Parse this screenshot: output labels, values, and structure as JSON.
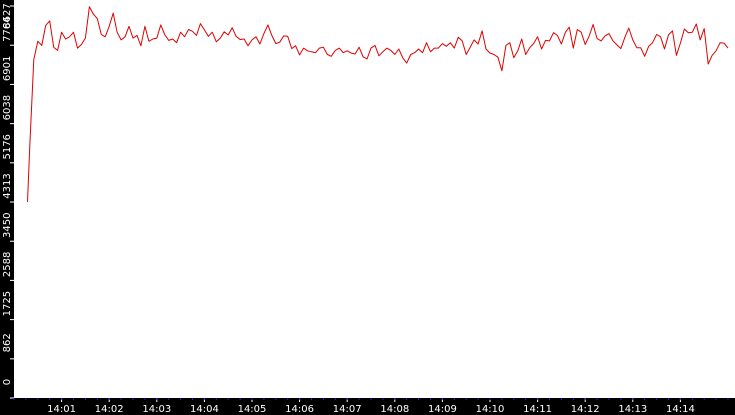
{
  "chart_data": {
    "type": "line",
    "title": "",
    "xlabel": "",
    "ylabel": "",
    "ylim": [
      0,
      8627
    ],
    "y_ticks": [
      0,
      862,
      1725,
      2588,
      3450,
      4313,
      5176,
      6038,
      6901,
      7764,
      8627
    ],
    "x_ticks": [
      "14:01",
      "14:02",
      "14:03",
      "14:04",
      "14:05",
      "14:06",
      "14:07",
      "14:08",
      "14:09",
      "14:10",
      "14:11",
      "14:12",
      "14:13",
      "14:14"
    ],
    "x_range": [
      "14:00:17",
      "14:15:00"
    ],
    "grid": false,
    "legend": "none",
    "colors": {
      "line": "#e00000",
      "axis_background": "#000000",
      "axis_text": "#ffffff",
      "minor_ticks": "#1a1aff"
    },
    "series": [
      {
        "x": [
          "14:00:17",
          "14:00:20",
          "14:00:25",
          "14:00:30",
          "14:00:35",
          "14:00:40",
          "14:00:45",
          "14:00:50",
          "14:00:55",
          "14:01:00",
          "14:01:05",
          "14:01:10",
          "14:01:15",
          "14:01:20",
          "14:01:25",
          "14:01:30",
          "14:01:35",
          "14:01:40",
          "14:01:45",
          "14:01:50",
          "14:01:55",
          "14:02:00",
          "14:02:05",
          "14:02:10",
          "14:02:15",
          "14:02:20",
          "14:02:25",
          "14:02:30",
          "14:02:35",
          "14:02:40",
          "14:02:45",
          "14:02:50",
          "14:02:55",
          "14:03:00",
          "14:03:05",
          "14:03:10",
          "14:03:15",
          "14:03:20",
          "14:03:25",
          "14:03:30",
          "14:03:35",
          "14:03:40",
          "14:03:45",
          "14:03:50",
          "14:03:55",
          "14:04:00",
          "14:04:05",
          "14:04:10",
          "14:04:15",
          "14:04:20",
          "14:04:25",
          "14:04:30",
          "14:04:35",
          "14:04:40",
          "14:04:45",
          "14:04:50",
          "14:04:55",
          "14:05:00",
          "14:05:05",
          "14:05:10",
          "14:05:15",
          "14:05:20",
          "14:05:25",
          "14:05:30",
          "14:05:35",
          "14:05:40",
          "14:05:45",
          "14:05:50",
          "14:05:55",
          "14:06:00",
          "14:06:05",
          "14:06:10",
          "14:06:15",
          "14:06:20",
          "14:06:25",
          "14:06:30",
          "14:06:35",
          "14:06:40",
          "14:06:45",
          "14:06:50",
          "14:06:55",
          "14:07:00",
          "14:07:05",
          "14:07:10",
          "14:07:15",
          "14:07:20",
          "14:07:25",
          "14:07:30",
          "14:07:35",
          "14:07:40",
          "14:07:45",
          "14:07:50",
          "14:07:55",
          "14:08:00",
          "14:08:05",
          "14:08:10",
          "14:08:15",
          "14:08:20",
          "14:08:25",
          "14:08:30",
          "14:08:35",
          "14:08:40",
          "14:08:45",
          "14:08:50",
          "14:08:55",
          "14:09:00",
          "14:09:05",
          "14:09:10",
          "14:09:15",
          "14:09:20",
          "14:09:25",
          "14:09:30",
          "14:09:35",
          "14:09:40",
          "14:09:45",
          "14:09:50",
          "14:09:55",
          "14:10:00",
          "14:10:05",
          "14:10:10",
          "14:10:15",
          "14:10:20",
          "14:10:25",
          "14:10:30",
          "14:10:35",
          "14:10:40",
          "14:10:45",
          "14:10:50",
          "14:10:55",
          "14:11:00",
          "14:11:05",
          "14:11:10",
          "14:11:15",
          "14:11:20",
          "14:11:25",
          "14:11:30",
          "14:11:35",
          "14:11:40",
          "14:11:45",
          "14:11:50",
          "14:11:55",
          "14:12:00",
          "14:12:05",
          "14:12:10",
          "14:12:15",
          "14:12:20",
          "14:12:25",
          "14:12:30",
          "14:12:35",
          "14:12:40",
          "14:12:45",
          "14:12:50",
          "14:12:55",
          "14:13:00",
          "14:13:05",
          "14:13:10",
          "14:13:15",
          "14:13:20",
          "14:13:25",
          "14:13:30",
          "14:13:35",
          "14:13:40",
          "14:13:45",
          "14:13:50",
          "14:13:55",
          "14:14:00",
          "14:14:05",
          "14:14:10",
          "14:14:15",
          "14:14:20",
          "14:14:25",
          "14:14:30",
          "14:14:35",
          "14:14:40",
          "14:14:45",
          "14:14:50",
          "14:14:55",
          "14:15:00"
        ],
        "values": [
          4313,
          5600,
          7450,
          7850,
          7760,
          8200,
          8300,
          7720,
          7650,
          8050,
          7900,
          7950,
          8050,
          7700,
          7780,
          7920,
          8610,
          8450,
          8350,
          8000,
          7950,
          8180,
          8470,
          8050,
          7880,
          7950,
          8180,
          7920,
          7980,
          7750,
          8180,
          7850,
          7900,
          7920,
          8210,
          8000,
          7870,
          7900,
          7820,
          8050,
          7950,
          8110,
          8070,
          7980,
          8240,
          8100,
          7960,
          8050,
          7840,
          7920,
          8060,
          7990,
          8150,
          7960,
          7890,
          7900,
          7750,
          7880,
          7950,
          7790,
          8020,
          8210,
          7980,
          7800,
          7830,
          7970,
          7960,
          7690,
          7750,
          7550,
          7700,
          7640,
          7620,
          7600,
          7700,
          7720,
          7560,
          7520,
          7650,
          7700,
          7600,
          7640,
          7590,
          7570,
          7720,
          7510,
          7460,
          7700,
          7760,
          7530,
          7620,
          7700,
          7650,
          7560,
          7680,
          7490,
          7370,
          7560,
          7600,
          7680,
          7600,
          7820,
          7620,
          7700,
          7700,
          7800,
          7740,
          7820,
          7700,
          7940,
          7860,
          7560,
          7720,
          7880,
          7790,
          8080,
          7680,
          7590,
          7560,
          7500,
          7200,
          7760,
          7820,
          7490,
          7640,
          7900,
          7560,
          7710,
          7800,
          7950,
          7680,
          7870,
          7860,
          8040,
          7980,
          7790,
          8050,
          8160,
          7700,
          8110,
          8050,
          7780,
          7970,
          8220,
          7910,
          7860,
          7970,
          8020,
          7860,
          7770,
          7690,
          7940,
          8140,
          7880,
          7710,
          7710,
          7520,
          7740,
          7820,
          8000,
          7950,
          7680,
          7990,
          8080,
          7540,
          7810,
          8120,
          8040,
          8050,
          8230,
          7880,
          8130,
          7350,
          7540,
          7640,
          7820,
          7810,
          7700
        ]
      }
    ]
  }
}
